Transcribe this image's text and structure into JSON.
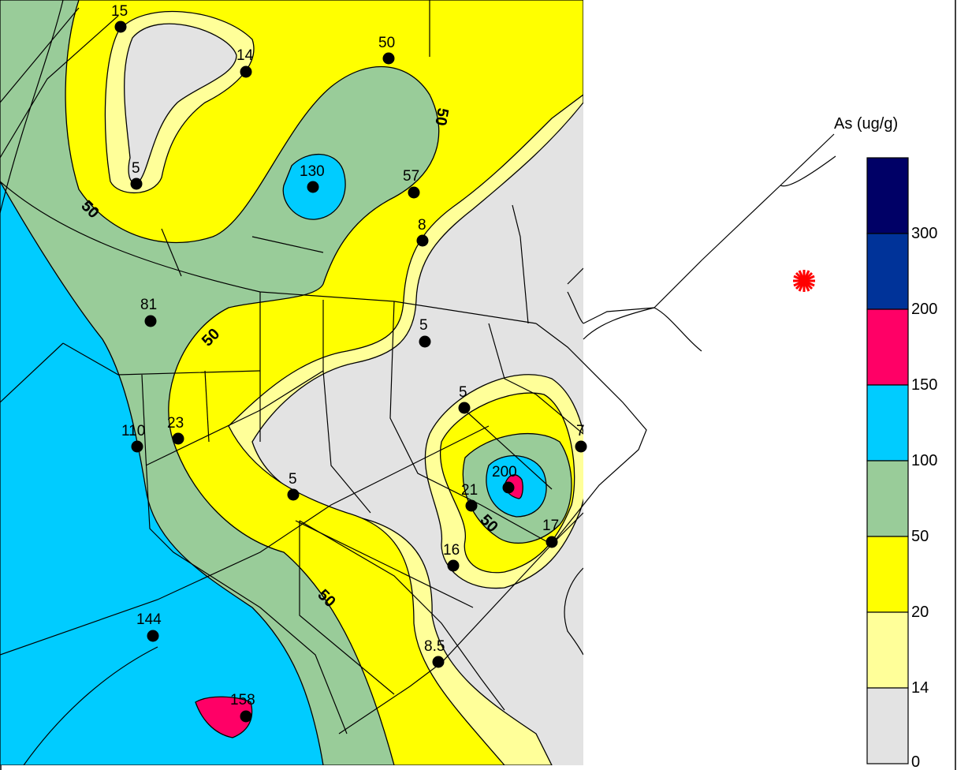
{
  "legend": {
    "title": "As (ug/g)",
    "breaks": [
      "300",
      "200",
      "150",
      "100",
      "50",
      "20",
      "14",
      "0"
    ],
    "bin_colors": [
      "#000066",
      "#003399",
      "#ff0066",
      "#00ccff",
      "#99cc99",
      "#ffff00",
      "#ffff99",
      "#e3e3e3"
    ]
  },
  "colors": {
    "gray": "#e3e3e3",
    "lightyellow": "#ffff99",
    "yellow": "#ffff00",
    "green": "#99cc99",
    "cyan": "#00ccff",
    "magenta": "#ff0066",
    "marker": "#ff0000"
  },
  "contour_labels": [
    "50",
    "50",
    "50",
    "50",
    "50",
    "50"
  ],
  "samples": [
    {
      "label": "15"
    },
    {
      "label": "14"
    },
    {
      "label": "50"
    },
    {
      "label": "5"
    },
    {
      "label": "130"
    },
    {
      "label": "57"
    },
    {
      "label": "8"
    },
    {
      "label": "81"
    },
    {
      "label": "5"
    },
    {
      "label": "5"
    },
    {
      "label": "110"
    },
    {
      "label": "23"
    },
    {
      "label": "7"
    },
    {
      "label": "200"
    },
    {
      "label": "5"
    },
    {
      "label": "21"
    },
    {
      "label": "17"
    },
    {
      "label": "16"
    },
    {
      "label": "144"
    },
    {
      "label": "8.5"
    },
    {
      "label": "158"
    }
  ],
  "source_marker_icon": "asterisk-icon"
}
